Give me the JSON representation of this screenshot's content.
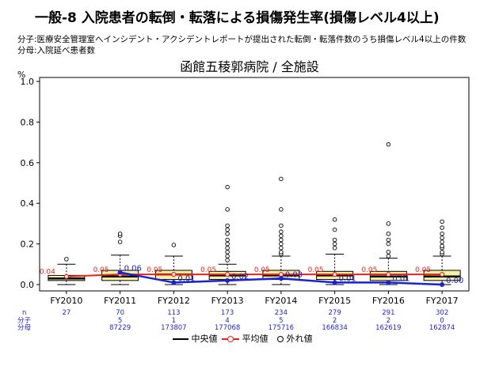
{
  "header": {
    "title": "一般-8 入院患者の転倒・転落による損傷発生率(損傷レベル4以上)",
    "numerator_desc": "分子:医療安全管理室へインシデント・アクシデントレポートが提出された転倒・転落件数のうち損傷レベル4以上の件数",
    "denominator_desc": "分母:入院延べ患者数"
  },
  "chart_data": {
    "type": "box",
    "title": "函館五稜郭病院 / 全施設",
    "ylabel": "%",
    "ylim": [
      0,
      1.0
    ],
    "yticks": [
      0.0,
      0.2,
      0.4,
      0.6,
      0.8,
      1.0
    ],
    "ytick_labels": [
      "0.0",
      "0.2",
      "0.4",
      "0.6",
      "0.8",
      "1.0"
    ],
    "categories": [
      "FY2010",
      "FY2011",
      "FY2012",
      "FY2013",
      "FY2014",
      "FY2015",
      "FY2016",
      "FY2017"
    ],
    "n_label": "n",
    "n_values": [
      27,
      70,
      113,
      173,
      234,
      279,
      291,
      302
    ],
    "numerator_label": "分子",
    "numerators": [
      "",
      "5",
      "1",
      "4",
      "5",
      "2",
      "2",
      "0"
    ],
    "denominator_label": "分母",
    "denominators": [
      "",
      "87229",
      "173807",
      "177068",
      "175716",
      "166834",
      "162619",
      "162874"
    ],
    "boxes": [
      {
        "q1": 0.02,
        "median": 0.03,
        "q3": 0.045,
        "whisker_low": 0.0,
        "whisker_high": 0.1,
        "outliers": [
          0.125
        ]
      },
      {
        "q1": 0.02,
        "median": 0.04,
        "q3": 0.07,
        "whisker_low": 0.0,
        "whisker_high": 0.145,
        "outliers": [
          0.21,
          0.24,
          0.25
        ]
      },
      {
        "q1": 0.025,
        "median": 0.05,
        "q3": 0.07,
        "whisker_low": 0.0,
        "whisker_high": 0.14,
        "outliers": [
          0.195
        ]
      },
      {
        "q1": 0.025,
        "median": 0.045,
        "q3": 0.065,
        "whisker_low": 0.0,
        "whisker_high": 0.1,
        "outliers": [
          0.12,
          0.14,
          0.16,
          0.18,
          0.2,
          0.22,
          0.25,
          0.27,
          0.29,
          0.37,
          0.48
        ]
      },
      {
        "q1": 0.025,
        "median": 0.045,
        "q3": 0.07,
        "whisker_low": 0.0,
        "whisker_high": 0.14,
        "outliers": [
          0.15,
          0.16,
          0.18,
          0.2,
          0.22,
          0.24,
          0.26,
          0.29,
          0.37,
          0.52
        ]
      },
      {
        "q1": 0.025,
        "median": 0.045,
        "q3": 0.065,
        "whisker_low": 0.0,
        "whisker_high": 0.15,
        "outliers": [
          0.18,
          0.2,
          0.22,
          0.27,
          0.32
        ]
      },
      {
        "q1": 0.02,
        "median": 0.04,
        "q3": 0.065,
        "whisker_low": 0.0,
        "whisker_high": 0.13,
        "outliers": [
          0.14,
          0.16,
          0.2,
          0.22,
          0.25,
          0.3,
          0.69
        ]
      },
      {
        "q1": 0.02,
        "median": 0.04,
        "q3": 0.07,
        "whisker_low": 0.0,
        "whisker_high": 0.14,
        "outliers": [
          0.15,
          0.16,
          0.18,
          0.19,
          0.21,
          0.23,
          0.25,
          0.28,
          0.31
        ]
      }
    ],
    "series": [
      {
        "name": "平均値",
        "color": "#e8231a",
        "values": [
          0.04,
          0.05,
          0.05,
          0.05,
          0.05,
          0.05,
          0.05,
          0.05
        ],
        "labels": [
          "0.04",
          "0.05",
          "0.05",
          "0.05",
          "0.05",
          "0.05",
          "0.05",
          "0.05"
        ]
      },
      {
        "name": "hospital",
        "color": "#1a22d6",
        "values": [
          null,
          0.06,
          0.01,
          0.02,
          0.03,
          0.01,
          0.01,
          0.0
        ],
        "labels": [
          "",
          "0.06",
          "0.01",
          "0.02",
          "0.03",
          "0.01",
          "0.01",
          "0.00"
        ]
      }
    ],
    "legend": [
      {
        "label": "中央値",
        "color": "#000000"
      },
      {
        "label": "平均値",
        "color": "#e8231a"
      },
      {
        "label": "外れ値",
        "color": "#000000"
      }
    ],
    "colors": {
      "box_fill": "#f7f0a0",
      "box_stroke": "#000000"
    }
  }
}
